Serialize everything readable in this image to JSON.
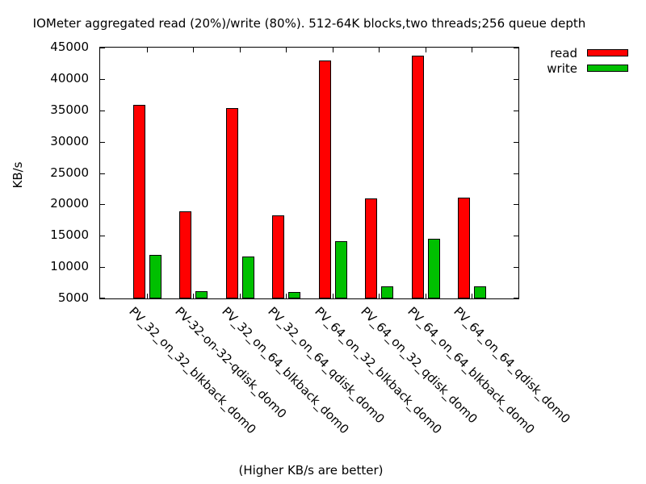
{
  "caption": "(Higher KB/s are better)",
  "colors": {
    "read": "#ff0000",
    "write": "#00c000",
    "axis": "#000000",
    "background": "#ffffff"
  },
  "chart_data": {
    "type": "bar",
    "title": "IOMeter aggregated read (20%)/write (80%). 512-64K blocks,two threads;256 queue depth",
    "xlabel": "",
    "ylabel": "KB/s",
    "ylim": [
      5000,
      45000
    ],
    "ytick_step": 5000,
    "grid": false,
    "legend_position": "top-right-outside",
    "categories": [
      "PV_32_on_32_blkback_dom0",
      "PV-32-on-32-qdisk_dom0",
      "PV_32_on_64_blkback_dom0",
      "PV_32_on_64_qdisk_dom0",
      "PV_64_on_32_blkback_dom0",
      "PV_64_on_32_qdisk_dom0",
      "PV_64_on_64_blkback_dom0",
      "PV_64_on_64_qdisk_dom0"
    ],
    "series": [
      {
        "name": "read",
        "color": "#ff0000",
        "values": [
          35900,
          18900,
          35400,
          18300,
          42900,
          21000,
          43700,
          21100
        ]
      },
      {
        "name": "write",
        "color": "#00c000",
        "values": [
          11900,
          6100,
          11700,
          6000,
          14100,
          6900,
          14500,
          6900
        ]
      }
    ]
  }
}
